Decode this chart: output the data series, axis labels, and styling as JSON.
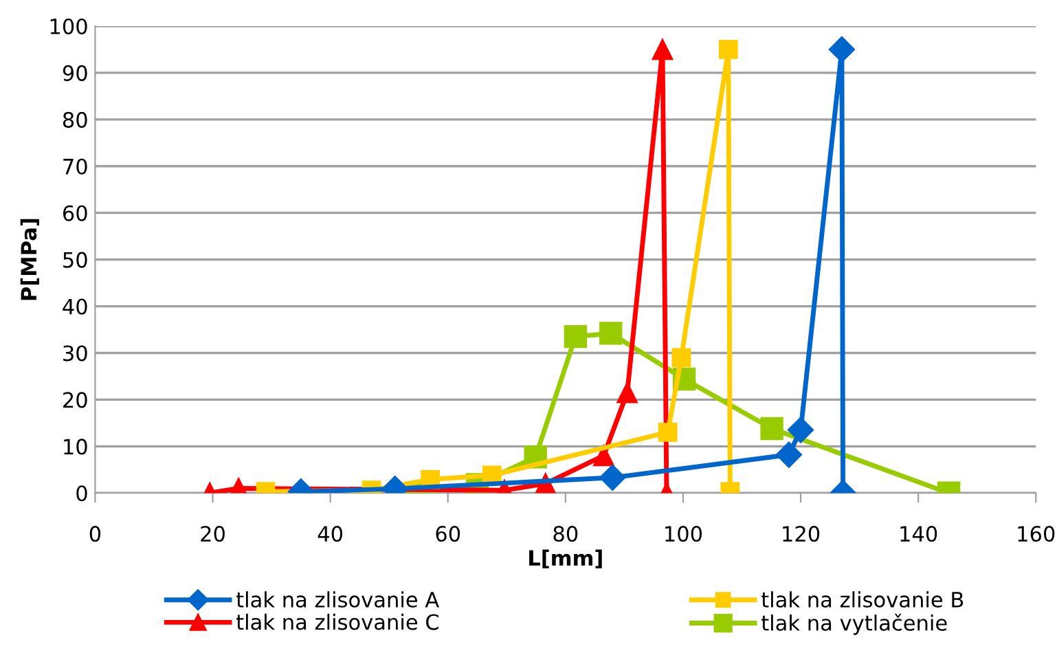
{
  "chart_data": {
    "type": "line",
    "xlabel": "L[mm]",
    "ylabel": "P[MPa]",
    "xlim": [
      0,
      160
    ],
    "xticks": [
      0,
      20,
      40,
      60,
      80,
      100,
      120,
      140,
      160
    ],
    "ylim": [
      0,
      100
    ],
    "yticks": [
      0,
      10,
      20,
      30,
      40,
      50,
      60,
      70,
      80,
      90,
      100
    ],
    "grid": "y",
    "legend": "bottom",
    "line_style": "solid",
    "series": [
      {
        "name": "tlak na zlisovanie A",
        "color": "#0066cc",
        "marker": "diamond",
        "x": [
          35,
          51,
          88,
          118,
          120,
          127,
          127.2
        ],
        "values": [
          0.3,
          0.9,
          3.3,
          8.2,
          13.5,
          95,
          0
        ]
      },
      {
        "name": "tlak na zlisovanie B",
        "color": "#ffcc00",
        "marker": "square",
        "x": [
          29,
          47,
          57,
          67.5,
          97.4,
          99.7,
          107.7,
          108
        ],
        "values": [
          0.3,
          0.6,
          2.9,
          3.8,
          13,
          29,
          95,
          0.3
        ]
      },
      {
        "name": "tlak na zlisovanie C",
        "color": "#ff0000",
        "marker": "triangle",
        "x": [
          19.5,
          24.4,
          69.6,
          76.6,
          86.5,
          90.5,
          96.5,
          97.2
        ],
        "values": [
          0,
          1,
          0.6,
          2,
          8,
          21.5,
          95,
          0
        ]
      },
      {
        "name": "tlak na vytlačenie",
        "color": "#99cc00",
        "marker": "square",
        "x": [
          54.7,
          65,
          74.9,
          81.7,
          87.7,
          100.2,
          115.1,
          145.2
        ],
        "values": [
          0,
          1.8,
          7.7,
          33.5,
          34.2,
          24.4,
          13.8,
          0
        ]
      }
    ]
  }
}
